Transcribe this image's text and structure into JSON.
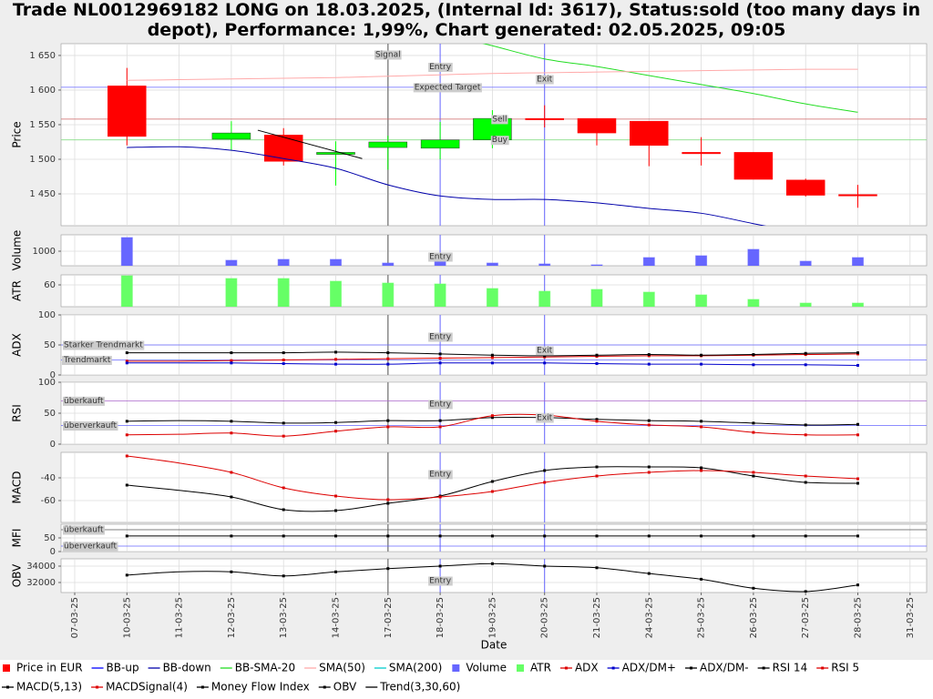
{
  "chart_data": {
    "type": "financial",
    "title": "Trade NL0012969182 LONG on 18.03.2025, (Internal Id: 3617), Status:sold (too many days in depot), Performance: 1,99%, Chart generated: 02.05.2025, 09:05",
    "x_label": "Date",
    "grid": true,
    "categories": [
      "07-03-25",
      "10-03-25",
      "11-03-25",
      "12-03-25",
      "13-03-25",
      "14-03-25",
      "17-03-25",
      "18-03-25",
      "19-03-25",
      "20-03-25",
      "21-03-25",
      "24-03-25",
      "25-03-25",
      "26-03-25",
      "27-03-25",
      "28-03-25",
      "31-03-25"
    ],
    "events": [
      {
        "label": "Signal",
        "x": "17-03-25",
        "color": "#888888"
      },
      {
        "label": "Entry",
        "x": "18-03-25",
        "color": "#6666ff"
      },
      {
        "label": "Exit",
        "x": "20-03-25",
        "color": "#6666ff"
      }
    ],
    "panels": [
      {
        "y_label": "Price",
        "ylim": [
          1404,
          1667
        ],
        "yticks": [
          {
            "value": 1450,
            "label": "1 450"
          },
          {
            "value": 1500,
            "label": "1 500"
          },
          {
            "value": 1550,
            "label": "1 550"
          },
          {
            "value": 1600,
            "label": "1 600"
          },
          {
            "value": 1650,
            "label": "1 650"
          }
        ],
        "hlines": [
          {
            "value": 1604,
            "label": "Expected Target",
            "x": "18-03-25",
            "color": "#6666ff"
          },
          {
            "value": 1558,
            "label": "Sell",
            "x": "19-03-25",
            "color": "#cc6666"
          },
          {
            "value": 1528,
            "label": "Buy",
            "x": "19-03-25",
            "color": "#88dd88"
          }
        ],
        "annotations": [],
        "series": [
          {
            "name": "Price in EUR",
            "type": "candlestick",
            "color": "#ff0000",
            "up_color": "#00ff00",
            "open": [
              null,
              1606,
              null,
              1529,
              1535,
              1507,
              1517,
              1516,
              1528,
              1559,
              1559,
              1555,
              1510,
              1510,
              1470,
              1449,
              null
            ],
            "close": [
              null,
              1533,
              null,
              1538,
              1497,
              1510,
              1525,
              1528,
              1559,
              1558,
              1538,
              1520,
              1508,
              1471,
              1448,
              1447,
              null
            ],
            "high": [
              null,
              1632,
              null,
              1555,
              1545,
              1526,
              1534,
              1554,
              1571,
              1578,
              1559,
              1555,
              1532,
              1510,
              1472,
              1463,
              null
            ],
            "low": [
              null,
              1520,
              null,
              1513,
              1491,
              1462,
              1485,
              1500,
              1516,
              1546,
              1520,
              1490,
              1491,
              1471,
              1446,
              1430,
              null
            ]
          },
          {
            "name": "BB-up",
            "type": "line",
            "color": "#0000ff",
            "values": [
              null,
              null,
              null,
              null,
              null,
              null,
              null,
              null,
              null,
              null,
              null,
              null,
              null,
              null,
              null,
              null,
              null
            ]
          },
          {
            "name": "BB-down",
            "type": "line",
            "color": "#0000aa",
            "values": [
              null,
              1517,
              1518,
              1513,
              1501,
              1487,
              1463,
              1447,
              1442,
              1442,
              1437,
              1429,
              1422,
              1407,
              1392,
              1376,
              null
            ]
          },
          {
            "name": "BB-SMA-20",
            "type": "line",
            "color": "#22dd22",
            "values": [
              null,
              null,
              null,
              null,
              null,
              null,
              null,
              1683,
              1664,
              1645,
              1634,
              1621,
              1608,
              1595,
              1580,
              1568,
              null
            ]
          },
          {
            "name": "SMA(50)",
            "type": "line",
            "color": "#ffaaaa",
            "values": [
              null,
              1614,
              1615,
              1616,
              1617,
              1618,
              1620,
              1622,
              1624,
              1625,
              1626,
              1627,
              1628,
              1629,
              1630,
              1630,
              null
            ]
          },
          {
            "name": "SMA(200)",
            "type": "line",
            "color": "#00cccc",
            "values": [
              null,
              null,
              null,
              null,
              null,
              null,
              null,
              null,
              null,
              null,
              null,
              null,
              null,
              null,
              null,
              null,
              null
            ]
          }
        ]
      },
      {
        "y_label": "Volume",
        "ylim": [
          0,
          2125
        ],
        "yticks": [
          1000
        ],
        "hlines": [],
        "annotations": [
          {
            "text": "Entry",
            "x": "18-03-25"
          }
        ],
        "series": [
          {
            "name": "Volume",
            "type": "bar",
            "color": "#6666ff",
            "values": [
              null,
              1937,
              null,
              375,
              437,
              437,
              187,
              312,
              187,
              125,
              62,
              562,
              687,
              1125,
              312,
              562,
              null
            ]
          }
        ]
      },
      {
        "y_label": "ATR",
        "ylim": [
          0,
          87.5
        ],
        "yticks": [
          60
        ],
        "hlines": [],
        "annotations": [],
        "series": [
          {
            "name": "ATR",
            "type": "bar",
            "color": "#66ff66",
            "values": [
              null,
              85,
              null,
              77.5,
              77.5,
              70,
              65,
              62.5,
              50,
              42.5,
              47.5,
              40,
              32.5,
              20,
              10,
              10,
              null
            ]
          }
        ]
      },
      {
        "y_label": "ADX",
        "ylim": [
          0,
          100
        ],
        "yticks": [
          0,
          50,
          100
        ],
        "hlines": [
          {
            "value": 50,
            "label": "Starker Trendmarkt",
            "color": "#6666ff"
          },
          {
            "value": 25,
            "label": "Trendmarkt",
            "color": "#6666ff"
          }
        ],
        "annotations": [
          {
            "text": "Entry",
            "x": "18-03-25"
          },
          {
            "text": "Exit",
            "x": "20-03-25"
          }
        ],
        "series": [
          {
            "name": "ADX",
            "type": "line",
            "markers": true,
            "color": "#dd0000",
            "values": [
              null,
              23,
              23,
              24,
              25,
              26,
              27,
              28,
              29,
              30,
              31,
              32,
              32,
              33,
              34,
              35,
              null
            ]
          },
          {
            "name": "ADX/DM+",
            "type": "line",
            "markers": true,
            "color": "#0000cc",
            "values": [
              null,
              20,
              20,
              20,
              19,
              18,
              18,
              20,
              20,
              20,
              19,
              18,
              18,
              17,
              17,
              16,
              null
            ]
          },
          {
            "name": "ADX/DM-",
            "type": "line",
            "markers": true,
            "color": "#000000",
            "values": [
              null,
              37,
              37,
              37,
              37,
              38,
              37,
              35,
              33,
              32,
              33,
              34,
              33,
              34,
              36,
              37,
              null
            ]
          }
        ]
      },
      {
        "y_label": "RSI",
        "ylim": [
          0,
          100
        ],
        "yticks": [
          0,
          50,
          100
        ],
        "hlines": [
          {
            "value": 70,
            "label": "überkauft",
            "color": "#aa66cc"
          },
          {
            "value": 30,
            "label": "überverkauft",
            "color": "#6666ff"
          }
        ],
        "annotations": [
          {
            "text": "Entry",
            "x": "18-03-25"
          },
          {
            "text": "Exit",
            "x": "20-03-25"
          }
        ],
        "series": [
          {
            "name": "RSI 14",
            "type": "line",
            "markers": true,
            "color": "#000000",
            "values": [
              null,
              37,
              38,
              37,
              34,
              35,
              38,
              38,
              43,
              43,
              40,
              38,
              37,
              34,
              31,
              32,
              null
            ]
          },
          {
            "name": "RSI 5",
            "type": "line",
            "markers": true,
            "color": "#dd0000",
            "values": [
              null,
              15,
              16,
              18,
              13,
              21,
              28,
              28,
              46,
              47,
              37,
              31,
              28,
              19,
              15,
              15,
              null
            ]
          }
        ]
      },
      {
        "y_label": "MACD",
        "ylim": [
          -79.2,
          -17.6
        ],
        "yticks": [
          -60,
          -40
        ],
        "hlines": [],
        "annotations": [
          {
            "text": "Entry",
            "x": "18-03-25"
          }
        ],
        "series": [
          {
            "name": "MACD(5,13)",
            "type": "line",
            "markers": true,
            "color": "#000000",
            "values": [
              null,
              -46.4,
              -51,
              -56.8,
              -68,
              -68.8,
              -62.4,
              -56,
              -43.2,
              -33.6,
              -30.4,
              -30.4,
              -31.2,
              -38.4,
              -44,
              -44.8,
              null
            ]
          },
          {
            "name": "MACDSignal(4)",
            "type": "line",
            "markers": true,
            "color": "#dd0000",
            "values": [
              null,
              -20.8,
              -27,
              -35.2,
              -48.8,
              -56,
              -59.2,
              -56.8,
              -52,
              -44,
              -38.4,
              -35.2,
              -33.6,
              -35.2,
              -38.4,
              -40.8,
              null
            ]
          }
        ]
      },
      {
        "y_label": "MFI",
        "ylim": [
          0,
          100
        ],
        "yticks": [
          0,
          50
        ],
        "hlines": [
          {
            "value": 80,
            "label": "überkauft",
            "color": "#555555"
          },
          {
            "value": 20,
            "label": "überverkauft",
            "color": "#6666ff"
          }
        ],
        "annotations": [],
        "series": [
          {
            "name": "Money Flow Index",
            "type": "line",
            "markers": true,
            "color": "#000000",
            "values": [
              null,
              57,
              57,
              57,
              57,
              57,
              57,
              57,
              57,
              57,
              57,
              57,
              57,
              57,
              57,
              57,
              null
            ]
          }
        ]
      },
      {
        "y_label": "OBV",
        "ylim": [
          30778,
          34889
        ],
        "yticks": [
          32000,
          34000
        ],
        "hlines": [],
        "annotations": [
          {
            "text": "Entry",
            "x": "18-03-25"
          }
        ],
        "series": [
          {
            "name": "OBV",
            "type": "line",
            "markers": true,
            "color": "#000000",
            "values": [
              null,
              32900,
              33300,
              33300,
              32800,
              33300,
              33700,
              34000,
              34300,
              34000,
              33800,
              33100,
              32400,
              31300,
              30900,
              31700,
              null
            ]
          }
        ]
      }
    ],
    "trend": {
      "name": "Trend(3,30,60)",
      "color": "#000000",
      "x": [
        "12-03-25",
        "14-03-25"
      ],
      "values": [
        1542,
        1501
      ]
    }
  }
}
